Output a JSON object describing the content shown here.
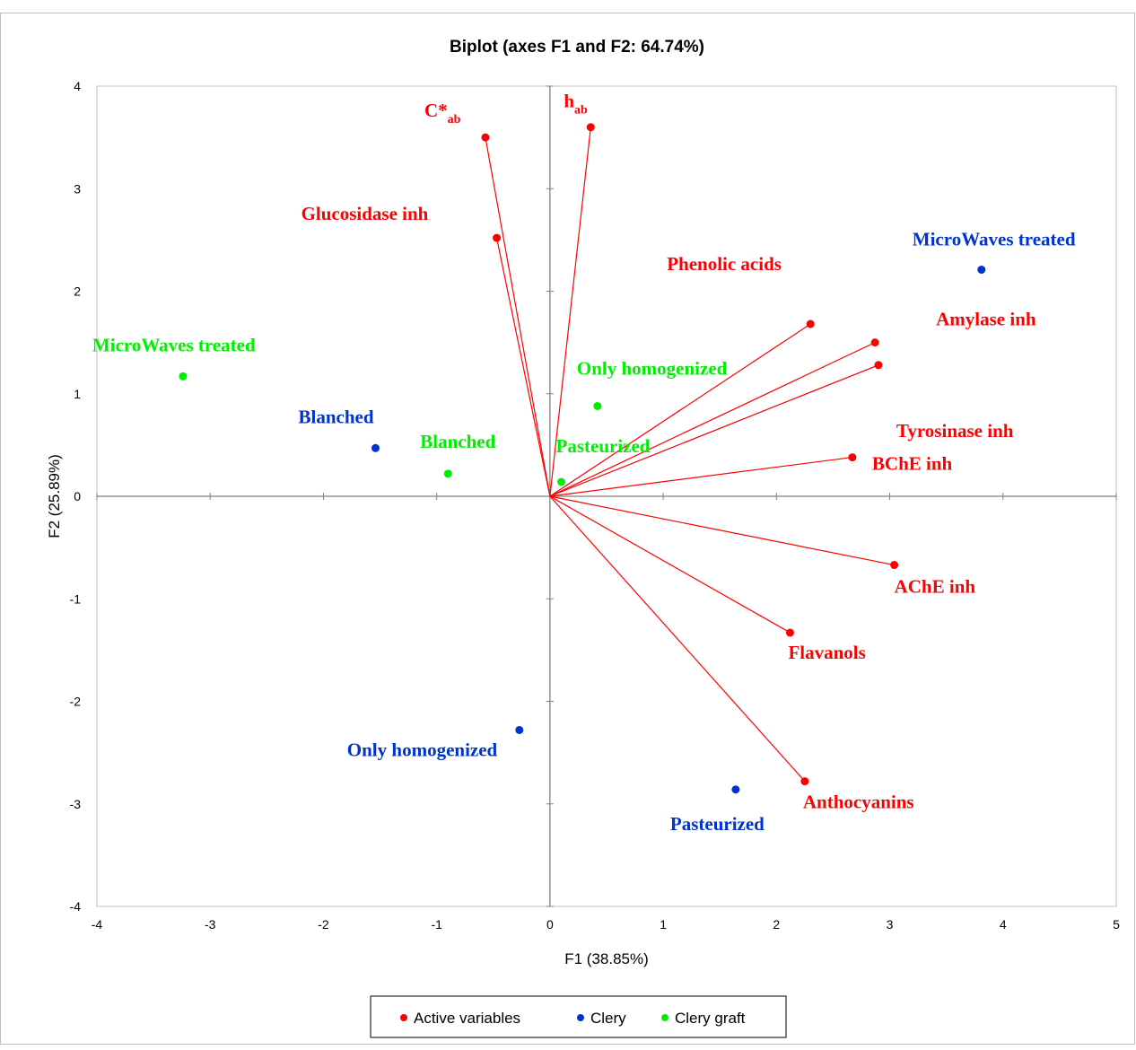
{
  "chart_data": {
    "type": "scatter",
    "title": "Biplot (axes F1 and F2: 64.74%)",
    "xlabel": "F1 (38.85%)",
    "ylabel": "F2 (25.89%)",
    "xlim": [
      -4,
      5
    ],
    "ylim": [
      -4,
      4
    ],
    "xticks": [
      -4,
      -3,
      -2,
      -1,
      0,
      1,
      2,
      3,
      4,
      5
    ],
    "yticks": [
      -4,
      -3,
      -2,
      -1,
      0,
      1,
      2,
      3,
      4
    ],
    "grid": false,
    "legend_position": "bottom",
    "colors": {
      "Active variables": "#ff0000",
      "Clery": "#0033cc",
      "Clery graft": "#00ee00"
    },
    "series": [
      {
        "name": "Active variables",
        "color": "#ff0000",
        "vectors": true,
        "points": [
          {
            "label": "C*",
            "sub": "ab",
            "x": -0.57,
            "y": 3.5
          },
          {
            "label": "h",
            "sub": "ab",
            "x": 0.36,
            "y": 3.6
          },
          {
            "label": "Glucosidase inh",
            "sub": "",
            "x": -0.47,
            "y": 2.52
          },
          {
            "label": "Phenolic acids",
            "sub": "",
            "x": 2.3,
            "y": 1.68
          },
          {
            "label": "Amylase inh",
            "sub": "",
            "x": 2.87,
            "y": 1.5
          },
          {
            "label": "Tyrosinase inh",
            "sub": "",
            "x": 2.9,
            "y": 1.28
          },
          {
            "label": "BChE inh",
            "sub": "",
            "x": 2.67,
            "y": 0.38
          },
          {
            "label": "AChE inh",
            "sub": "",
            "x": 3.04,
            "y": -0.67
          },
          {
            "label": "Flavanols",
            "sub": "",
            "x": 2.12,
            "y": -1.33
          },
          {
            "label": "Anthocyanins",
            "sub": "",
            "x": 2.25,
            "y": -2.78
          }
        ]
      },
      {
        "name": "Clery",
        "color": "#0033cc",
        "vectors": false,
        "points": [
          {
            "label": "MicroWaves treated",
            "x": 3.81,
            "y": 2.21
          },
          {
            "label": "Blanched",
            "x": -1.54,
            "y": 0.47
          },
          {
            "label": "Only homogenized",
            "x": -0.27,
            "y": -2.28
          },
          {
            "label": "Pasteurized",
            "x": 1.64,
            "y": -2.86
          }
        ]
      },
      {
        "name": "Clery graft",
        "color": "#00ee00",
        "vectors": false,
        "points": [
          {
            "label": "MicroWaves treated",
            "x": -3.24,
            "y": 1.17
          },
          {
            "label": "Blanched",
            "x": -0.9,
            "y": 0.22
          },
          {
            "label": "Only homogenized",
            "x": 0.42,
            "y": 0.88
          },
          {
            "label": "Pasteurized",
            "x": 0.1,
            "y": 0.14
          }
        ]
      }
    ]
  }
}
